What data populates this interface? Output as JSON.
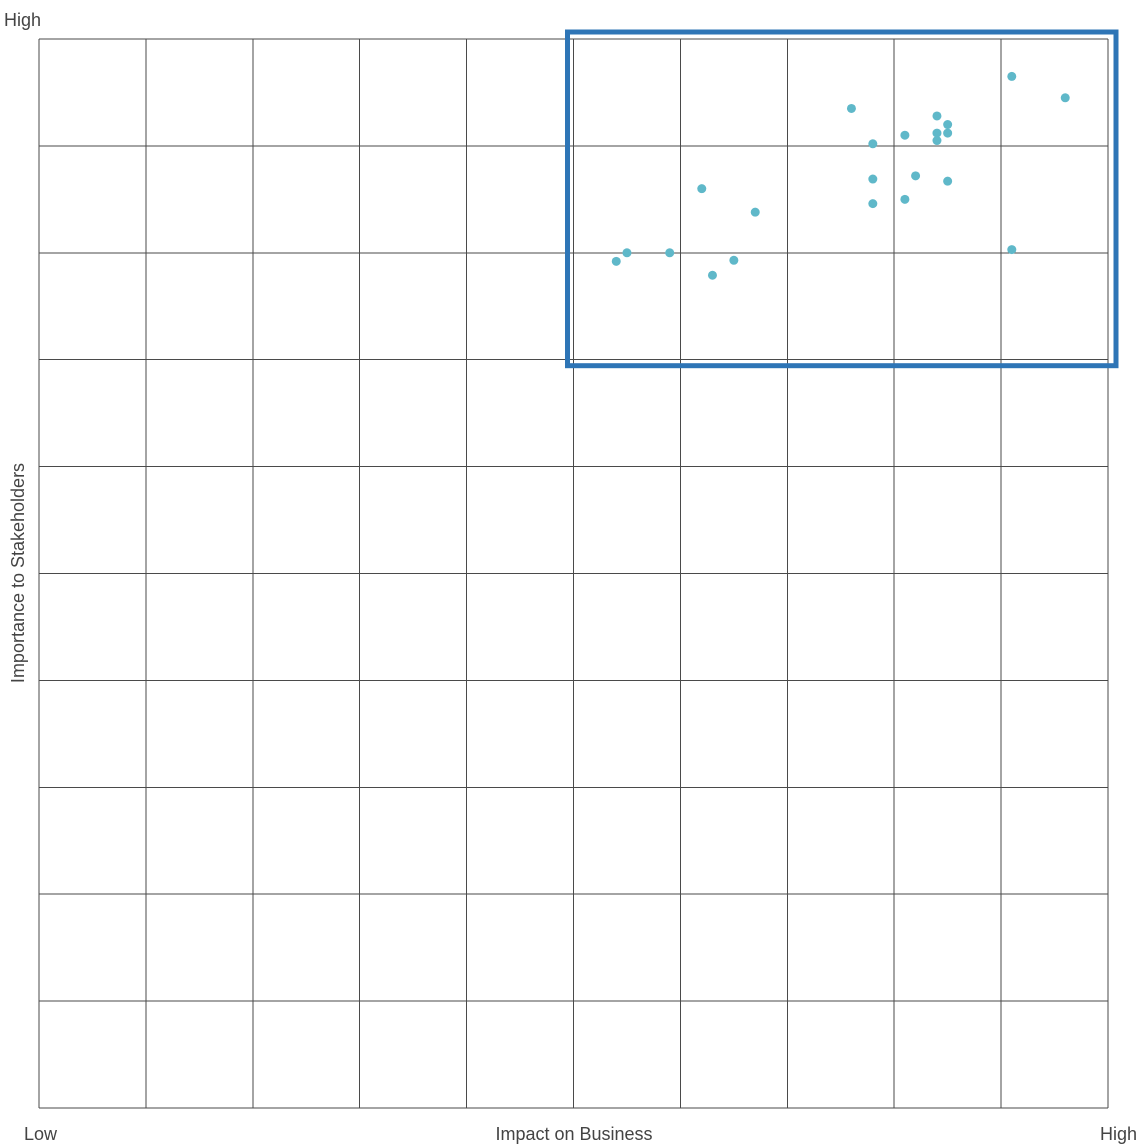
{
  "chart_data": {
    "type": "scatter",
    "title": "",
    "xlabel": "Impact on Business",
    "ylabel": "Importance to Stakeholders",
    "x_low_label": "Low",
    "x_high_label": "High",
    "y_high_label": "High",
    "xlim": [
      0,
      10
    ],
    "ylim": [
      0,
      10
    ],
    "grid": true,
    "grid_divisions": 10,
    "highlight_region": {
      "x": [
        5,
        10
      ],
      "y": [
        7,
        10
      ],
      "color": "#2e75b6"
    },
    "point_color": "#5fb8c9",
    "series": [
      {
        "points": [
          {
            "x": 9.1,
            "y": 9.65
          },
          {
            "x": 9.6,
            "y": 9.45
          },
          {
            "x": 7.6,
            "y": 9.35
          },
          {
            "x": 8.4,
            "y": 9.28
          },
          {
            "x": 8.5,
            "y": 9.2
          },
          {
            "x": 8.4,
            "y": 9.12
          },
          {
            "x": 8.1,
            "y": 9.1
          },
          {
            "x": 8.5,
            "y": 9.12
          },
          {
            "x": 8.4,
            "y": 9.05
          },
          {
            "x": 7.8,
            "y": 9.02
          },
          {
            "x": 8.2,
            "y": 8.72
          },
          {
            "x": 8.5,
            "y": 8.67
          },
          {
            "x": 7.8,
            "y": 8.69
          },
          {
            "x": 6.2,
            "y": 8.6
          },
          {
            "x": 8.1,
            "y": 8.5
          },
          {
            "x": 7.8,
            "y": 8.46
          },
          {
            "x": 6.7,
            "y": 8.38
          },
          {
            "x": 9.1,
            "y": 8.03
          },
          {
            "x": 5.5,
            "y": 8.0
          },
          {
            "x": 5.9,
            "y": 8.0
          },
          {
            "x": 5.4,
            "y": 7.92
          },
          {
            "x": 6.5,
            "y": 7.93
          },
          {
            "x": 6.3,
            "y": 7.79
          }
        ]
      }
    ]
  }
}
